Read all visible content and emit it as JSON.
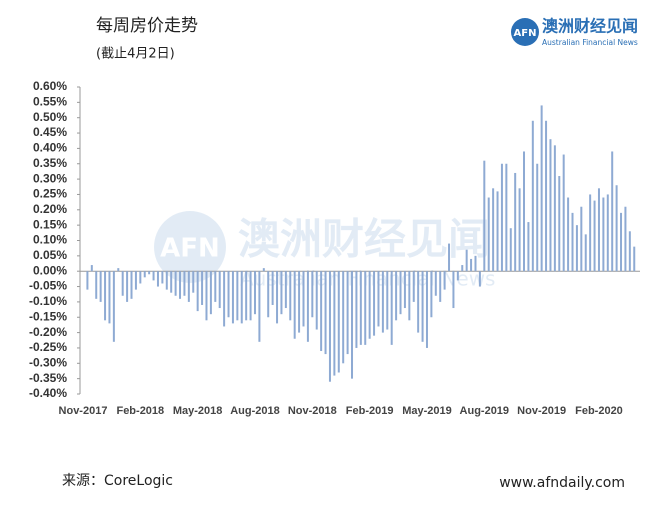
{
  "chart_data": {
    "type": "bar",
    "title": "每周房价走势",
    "subtitle": "(截止4月2日)",
    "source": "来源：CoreLogic",
    "website": "www.afndaily.com",
    "logo": {
      "mark": "AFN",
      "name": "澳洲财经见闻",
      "english": "Australian Financial News"
    },
    "color": "#8eaad3",
    "ylim": [
      -0.4,
      0.6
    ],
    "yticks": [
      {
        "value": 0.6,
        "label": "0.60%"
      },
      {
        "value": 0.55,
        "label": "0.55%"
      },
      {
        "value": 0.5,
        "label": "0.50%"
      },
      {
        "value": 0.45,
        "label": "0.45%"
      },
      {
        "value": 0.4,
        "label": "0.40%"
      },
      {
        "value": 0.35,
        "label": "0.35%"
      },
      {
        "value": 0.3,
        "label": "0.30%"
      },
      {
        "value": 0.25,
        "label": "0.25%"
      },
      {
        "value": 0.2,
        "label": "0.20%"
      },
      {
        "value": 0.15,
        "label": "0.15%"
      },
      {
        "value": 0.1,
        "label": "0.10%"
      },
      {
        "value": 0.05,
        "label": "0.05%"
      },
      {
        "value": 0,
        "label": "0.00%"
      },
      {
        "value": -0.05,
        "label": "-0.05%"
      },
      {
        "value": -0.1,
        "label": "-0.10%"
      },
      {
        "value": -0.15,
        "label": "-0.15%"
      },
      {
        "value": -0.2,
        "label": "-0.20%"
      },
      {
        "value": -0.25,
        "label": "-0.25%"
      },
      {
        "value": -0.3,
        "label": "-0.30%"
      },
      {
        "value": -0.35,
        "label": "-0.35%"
      },
      {
        "value": -0.4,
        "label": "-0.40%"
      }
    ],
    "categories": [
      "Nov-2017",
      null,
      null,
      null,
      null,
      null,
      null,
      null,
      null,
      null,
      null,
      null,
      null,
      "Feb-2018",
      null,
      null,
      null,
      null,
      null,
      null,
      null,
      null,
      null,
      null,
      null,
      null,
      "May-2018",
      null,
      null,
      null,
      null,
      null,
      null,
      null,
      null,
      null,
      null,
      null,
      null,
      "Aug-2018",
      null,
      null,
      null,
      null,
      null,
      null,
      null,
      null,
      null,
      null,
      null,
      null,
      "Nov-2018",
      null,
      null,
      null,
      null,
      null,
      null,
      null,
      null,
      null,
      null,
      null,
      null,
      "Feb-2019",
      null,
      null,
      null,
      null,
      null,
      null,
      null,
      null,
      null,
      null,
      null,
      null,
      "May-2019",
      null,
      null,
      null,
      null,
      null,
      null,
      null,
      null,
      null,
      null,
      null,
      null,
      "Aug-2019",
      null,
      null,
      null,
      null,
      null,
      null,
      null,
      null,
      null,
      null,
      null,
      null,
      "Nov-2019",
      null,
      null,
      null,
      null,
      null,
      null,
      null,
      null,
      null,
      null,
      null,
      null,
      "Feb-2020",
      null,
      null,
      null,
      null,
      null,
      null,
      null,
      null
    ],
    "values": [
      0.0,
      -0.06,
      0.02,
      -0.09,
      -0.1,
      -0.16,
      -0.17,
      -0.23,
      0.01,
      -0.08,
      -0.1,
      -0.09,
      -0.06,
      -0.04,
      -0.02,
      -0.01,
      -0.03,
      -0.05,
      -0.04,
      -0.06,
      -0.07,
      -0.08,
      -0.09,
      -0.08,
      -0.1,
      -0.07,
      -0.13,
      -0.11,
      -0.16,
      -0.14,
      -0.1,
      -0.12,
      -0.18,
      -0.15,
      -0.17,
      -0.16,
      -0.17,
      -0.16,
      -0.16,
      -0.14,
      -0.23,
      0.01,
      -0.15,
      -0.11,
      -0.17,
      -0.14,
      -0.12,
      -0.16,
      -0.22,
      -0.2,
      -0.18,
      -0.23,
      -0.15,
      -0.19,
      -0.26,
      -0.27,
      -0.36,
      -0.34,
      -0.33,
      -0.3,
      -0.27,
      -0.35,
      -0.25,
      -0.24,
      -0.24,
      -0.22,
      -0.21,
      -0.18,
      -0.2,
      -0.19,
      -0.24,
      -0.16,
      -0.14,
      -0.12,
      -0.16,
      -0.1,
      -0.2,
      -0.23,
      -0.25,
      -0.15,
      -0.08,
      -0.1,
      -0.06,
      0.09,
      -0.12,
      -0.03,
      0.02,
      0.07,
      0.04,
      0.05,
      -0.05,
      0.36,
      0.24,
      0.27,
      0.26,
      0.35,
      0.35,
      0.14,
      0.32,
      0.27,
      0.39,
      0.16,
      0.49,
      0.35,
      0.54,
      0.49,
      0.43,
      0.41,
      0.31,
      0.38,
      0.24,
      0.19,
      0.15,
      0.21,
      0.12,
      0.25,
      0.23,
      0.27,
      0.24,
      0.25,
      0.39,
      0.28,
      0.19,
      0.21,
      0.13,
      0.08
    ]
  }
}
